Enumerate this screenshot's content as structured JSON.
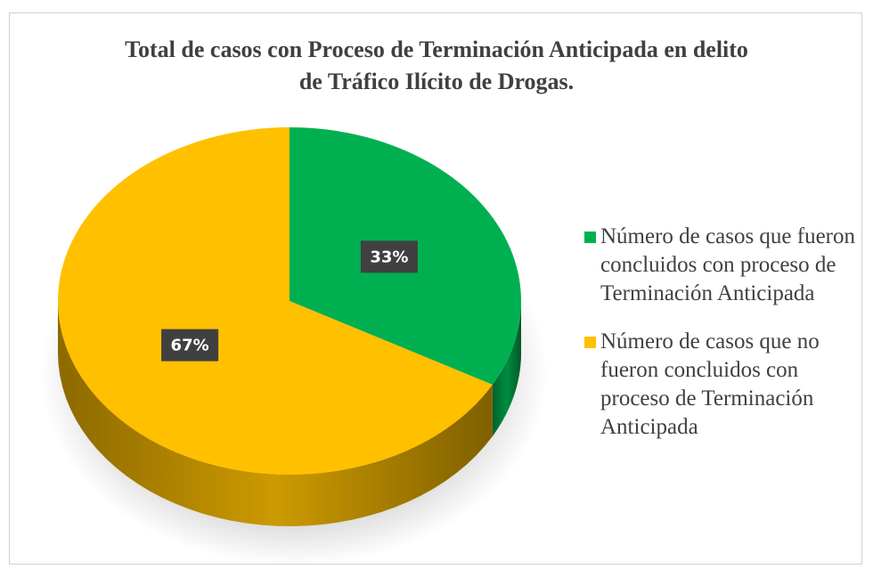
{
  "chart_data": {
    "type": "pie",
    "title": "Total de casos con Proceso de Terminación Anticipada en delito de Tráfico Ilícito de Drogas.",
    "categories": [
      "Número de casos que fueron concluidos con proceso de Terminación Anticipada",
      "Número de casos que no fueron concluidos con proceso de Terminación Anticipada"
    ],
    "values": [
      33,
      67
    ],
    "value_labels": [
      "33%",
      "67%"
    ],
    "colors": [
      "#00b050",
      "#ffc000"
    ],
    "legend": "right"
  }
}
